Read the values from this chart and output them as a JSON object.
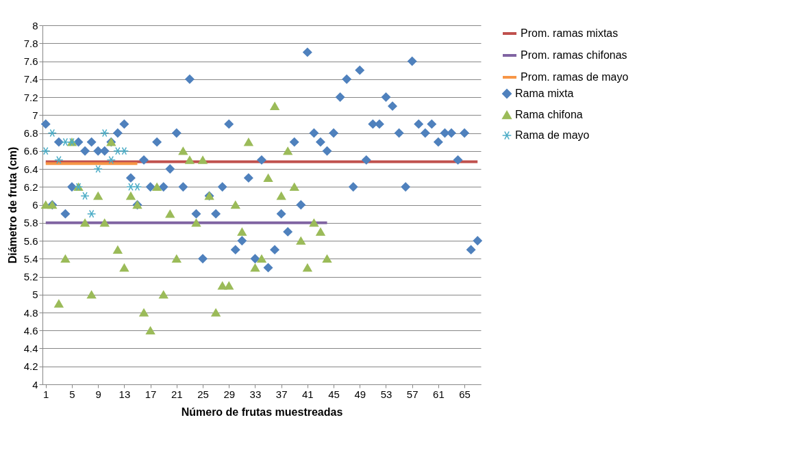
{
  "chart_data": {
    "type": "scatter",
    "xlabel": "Número de  frutas muestreadas",
    "ylabel": "Diámetro de fruta (cm)",
    "x": [
      1,
      2,
      3,
      4,
      5,
      6,
      7,
      8,
      9,
      10,
      11,
      12,
      13,
      14,
      15,
      16,
      17,
      18,
      19,
      20,
      21,
      22,
      23,
      24,
      25,
      26,
      27,
      28,
      29,
      30,
      31,
      32,
      33,
      34,
      35,
      36,
      37,
      38,
      39,
      40,
      41,
      42,
      43,
      44,
      45,
      46,
      47,
      48,
      49,
      50,
      51,
      52,
      53,
      54,
      55,
      56,
      57,
      58,
      59,
      60,
      61,
      62,
      63,
      64,
      65,
      66,
      67
    ],
    "xlim": [
      0.5,
      67.5
    ],
    "xticks": [
      1,
      5,
      9,
      13,
      17,
      21,
      25,
      29,
      33,
      37,
      41,
      45,
      49,
      53,
      57,
      61,
      65
    ],
    "ylim": [
      4,
      8
    ],
    "yticks": [
      4,
      4.2,
      4.4,
      4.6,
      4.8,
      5,
      5.2,
      5.4,
      5.6,
      5.8,
      6,
      6.2,
      6.4,
      6.6,
      6.8,
      7,
      7.2,
      7.4,
      7.6,
      7.8,
      8
    ],
    "grid": "y",
    "legend": "right",
    "series": [
      {
        "name": "Prom. ramas mixtas",
        "type": "line",
        "color": "#c0504d",
        "marker": "none",
        "line_style": "solid",
        "x": [
          1,
          67
        ],
        "values": [
          6.48,
          6.48
        ]
      },
      {
        "name": "Prom. ramas chifonas",
        "type": "line",
        "color": "#8064a2",
        "marker": "none",
        "line_style": "solid",
        "x": [
          1,
          44
        ],
        "values": [
          5.8,
          5.8
        ]
      },
      {
        "name": "Prom. ramas de mayo",
        "type": "line",
        "color": "#f79646",
        "marker": "none",
        "line_style": "solid",
        "x": [
          1,
          15
        ],
        "values": [
          6.46,
          6.46
        ]
      },
      {
        "name": "Rama mixta",
        "type": "scatter",
        "color": "#4f81bd",
        "marker": "diamond",
        "values": [
          6.9,
          6.0,
          6.7,
          5.9,
          6.2,
          6.7,
          6.6,
          6.7,
          6.6,
          6.6,
          6.7,
          6.8,
          6.9,
          6.3,
          6.0,
          6.5,
          6.2,
          6.7,
          6.2,
          6.4,
          6.8,
          6.2,
          7.4,
          5.9,
          5.4,
          6.1,
          5.9,
          6.2,
          6.9,
          5.5,
          5.6,
          6.3,
          5.4,
          6.5,
          5.3,
          5.5,
          5.9,
          5.7,
          6.7,
          6.0,
          7.7,
          6.8,
          6.7,
          6.6,
          6.8,
          7.2,
          7.4,
          6.2,
          7.5,
          6.5,
          6.9,
          6.9,
          7.2,
          7.1,
          6.8,
          6.2,
          7.6,
          6.9,
          6.8,
          6.9,
          6.7,
          6.8,
          6.8,
          6.5,
          6.8,
          5.5,
          5.6
        ]
      },
      {
        "name": "Rama chifona",
        "type": "scatter",
        "color": "#9bbb59",
        "marker": "triangle",
        "x": [
          1,
          2,
          3,
          4,
          5,
          6,
          7,
          8,
          9,
          10,
          11,
          12,
          13,
          14,
          15,
          16,
          17,
          18,
          19,
          20,
          21,
          22,
          23,
          24,
          25,
          26,
          27,
          28,
          29,
          30,
          31,
          32,
          33,
          34,
          35,
          36,
          37,
          38,
          39,
          40,
          41,
          42,
          43,
          44
        ],
        "values": [
          6.0,
          6.0,
          4.9,
          5.4,
          6.7,
          6.2,
          5.8,
          5.0,
          6.1,
          5.8,
          6.7,
          5.5,
          5.3,
          6.1,
          6.0,
          4.8,
          4.6,
          6.2,
          5.0,
          5.9,
          5.4,
          6.6,
          6.5,
          5.8,
          6.5,
          6.1,
          4.8,
          5.1,
          5.1,
          6.0,
          5.7,
          6.7,
          5.3,
          5.4,
          6.3,
          7.1,
          6.1,
          6.6,
          6.2,
          5.6,
          5.3,
          5.8,
          5.7,
          5.4
        ]
      },
      {
        "name": "Rama de mayo",
        "type": "scatter",
        "color": "#4bacc6",
        "marker": "cross",
        "x": [
          1,
          2,
          3,
          4,
          5,
          6,
          7,
          8,
          9,
          10,
          11,
          12,
          13,
          14,
          15
        ],
        "values": [
          6.6,
          6.8,
          6.5,
          6.7,
          6.7,
          6.2,
          6.1,
          5.9,
          6.4,
          6.8,
          6.5,
          6.6,
          6.6,
          6.2,
          6.2
        ]
      }
    ]
  }
}
